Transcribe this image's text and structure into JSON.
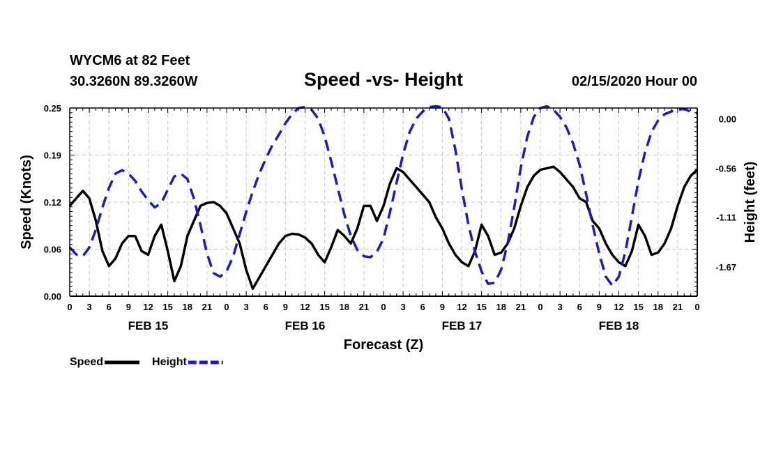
{
  "header": {
    "station": "WYCM6 at 82 Feet",
    "coords": "30.3260N 89.3260W",
    "title": "Speed -vs- Height",
    "datetime": "02/15/2020 Hour 00"
  },
  "chart_data": {
    "type": "line",
    "title": "Speed -vs- Height",
    "xlabel": "Forecast (Z)",
    "ylabel": "Speed (Knots)",
    "y2label": "Height (feet)",
    "x_range_hours": [
      0,
      96
    ],
    "ylim": [
      0,
      0.25
    ],
    "y2lim": [
      -2.0,
      0.12
    ],
    "grid": true,
    "x_tick_labels": [
      "0",
      "3",
      "6",
      "9",
      "12",
      "15",
      "18",
      "21",
      "0",
      "3",
      "6",
      "9",
      "12",
      "15",
      "18",
      "21",
      "0",
      "3",
      "6",
      "9",
      "12",
      "15",
      "18",
      "21",
      "0",
      "3",
      "6",
      "9",
      "12",
      "15",
      "18",
      "21",
      "0"
    ],
    "date_labels": [
      {
        "label": "FEB 15",
        "hour": 12
      },
      {
        "label": "FEB 16",
        "hour": 36
      },
      {
        "label": "FEB 17",
        "hour": 60
      },
      {
        "label": "FEB 18",
        "hour": 84
      }
    ],
    "y_ticks": [
      "0.00",
      "0.06",
      "0.12",
      "0.19",
      "0.25"
    ],
    "y_tick_values": [
      0,
      0.0625,
      0.125,
      0.1875,
      0.25
    ],
    "y2_ticks": [
      "0.00",
      "-0.56",
      "-1.11",
      "-1.67"
    ],
    "y2_tick_values": [
      0.0,
      -0.56,
      -1.11,
      -1.67
    ],
    "legend": [
      {
        "name": "Speed",
        "color": "#000000",
        "style": "solid"
      },
      {
        "name": "Height",
        "color": "#1a1acc",
        "style": "dashed"
      }
    ],
    "series": [
      {
        "name": "Speed",
        "axis": "left",
        "color": "#000000",
        "hours": [
          0,
          1,
          2,
          3,
          4,
          5,
          6,
          7,
          8,
          9,
          10,
          11,
          12,
          13,
          14,
          15,
          16,
          17,
          18,
          19,
          20,
          21,
          22,
          23,
          24,
          25,
          26,
          27,
          28,
          29,
          30,
          31,
          32,
          33,
          34,
          35,
          36,
          37,
          38,
          39,
          40,
          41,
          42,
          43,
          44,
          45,
          46,
          47,
          48,
          49,
          50,
          51,
          52,
          53,
          54,
          55,
          56,
          57,
          58,
          59,
          60,
          61,
          62,
          63,
          64,
          65,
          66,
          67,
          68,
          69,
          70,
          71,
          72,
          73,
          74,
          75,
          76,
          77,
          78,
          79,
          80,
          81,
          82,
          83,
          84,
          85,
          86,
          87,
          88,
          89,
          90,
          91,
          92,
          93,
          94,
          95,
          96
        ],
        "values": [
          0.12,
          0.13,
          0.14,
          0.13,
          0.1,
          0.06,
          0.04,
          0.05,
          0.07,
          0.08,
          0.08,
          0.06,
          0.055,
          0.08,
          0.095,
          0.06,
          0.02,
          0.04,
          0.08,
          0.1,
          0.12,
          0.124,
          0.125,
          0.12,
          0.11,
          0.09,
          0.07,
          0.035,
          0.01,
          0.025,
          0.04,
          0.055,
          0.07,
          0.08,
          0.083,
          0.082,
          0.078,
          0.07,
          0.055,
          0.045,
          0.065,
          0.088,
          0.08,
          0.07,
          0.09,
          0.12,
          0.12,
          0.1,
          0.12,
          0.15,
          0.17,
          0.165,
          0.155,
          0.145,
          0.135,
          0.125,
          0.105,
          0.09,
          0.07,
          0.055,
          0.045,
          0.04,
          0.06,
          0.095,
          0.08,
          0.055,
          0.058,
          0.07,
          0.09,
          0.12,
          0.145,
          0.16,
          0.168,
          0.17,
          0.172,
          0.165,
          0.155,
          0.145,
          0.13,
          0.125,
          0.1,
          0.09,
          0.07,
          0.055,
          0.045,
          0.04,
          0.06,
          0.095,
          0.08,
          0.055,
          0.058,
          0.07,
          0.09,
          0.12,
          0.145,
          0.16,
          0.168
        ]
      },
      {
        "name": "Height",
        "axis": "right",
        "color": "#1a1acc",
        "hours": [
          0,
          1,
          2,
          3,
          4,
          5,
          6,
          7,
          8,
          9,
          10,
          11,
          12,
          13,
          14,
          15,
          16,
          17,
          18,
          19,
          20,
          21,
          22,
          23,
          24,
          25,
          26,
          27,
          28,
          29,
          30,
          31,
          32,
          33,
          34,
          35,
          36,
          37,
          38,
          39,
          40,
          41,
          42,
          43,
          44,
          45,
          46,
          47,
          48,
          49,
          50,
          51,
          52,
          53,
          54,
          55,
          56,
          57,
          58,
          59,
          60,
          61,
          62,
          63,
          64,
          65,
          66,
          67,
          68,
          69,
          70,
          71,
          72,
          73,
          74,
          75,
          76,
          77,
          78,
          79,
          80,
          81,
          82,
          83,
          84,
          85,
          86,
          87,
          88,
          89,
          90,
          91,
          92,
          93,
          94,
          95,
          96
        ],
        "values": [
          -1.45,
          -1.53,
          -1.55,
          -1.45,
          -1.25,
          -1.0,
          -0.78,
          -0.62,
          -0.58,
          -0.62,
          -0.7,
          -0.82,
          -0.92,
          -1.0,
          -0.95,
          -0.8,
          -0.65,
          -0.62,
          -0.68,
          -0.9,
          -1.2,
          -1.52,
          -1.74,
          -1.78,
          -1.72,
          -1.55,
          -1.3,
          -1.05,
          -0.82,
          -0.62,
          -0.45,
          -0.3,
          -0.18,
          -0.05,
          0.05,
          0.12,
          0.13,
          0.1,
          0.0,
          -0.2,
          -0.48,
          -0.78,
          -1.08,
          -1.32,
          -1.48,
          -1.55,
          -1.56,
          -1.5,
          -1.35,
          -1.05,
          -0.72,
          -0.4,
          -0.15,
          0.0,
          0.08,
          0.13,
          0.14,
          0.13,
          0.0,
          -0.35,
          -0.8,
          -1.2,
          -1.5,
          -1.72,
          -1.86,
          -1.85,
          -1.7,
          -1.4,
          -1.0,
          -0.55,
          -0.2,
          0.02,
          0.12,
          0.14,
          0.1,
          0.02,
          -0.1,
          -0.28,
          -0.52,
          -0.85,
          -1.2,
          -1.52,
          -1.78,
          -1.88,
          -1.78,
          -1.5,
          -1.1,
          -0.7,
          -0.38,
          -0.15,
          -0.02,
          0.05,
          0.08,
          0.1,
          0.11,
          0.08,
          0.06
        ]
      }
    ]
  }
}
